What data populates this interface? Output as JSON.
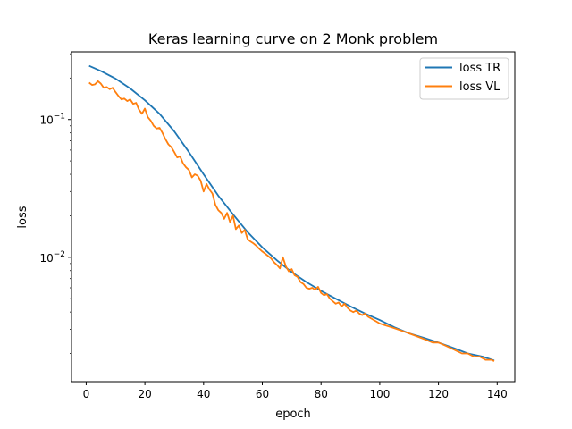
{
  "chart_data": {
    "type": "line",
    "title": "Keras learning curve on 2 Monk problem",
    "xlabel": "epoch",
    "ylabel": "loss",
    "xlim": [
      -5,
      146
    ],
    "ylim": [
      0.00125,
      0.31
    ],
    "yscale": "log",
    "grid": false,
    "legend": "top-right",
    "x_ticks": [
      {
        "value": 0,
        "label": "0"
      },
      {
        "value": 20,
        "label": "20"
      },
      {
        "value": 40,
        "label": "40"
      },
      {
        "value": 60,
        "label": "60"
      },
      {
        "value": 80,
        "label": "80"
      },
      {
        "value": 100,
        "label": "100"
      },
      {
        "value": 120,
        "label": "120"
      },
      {
        "value": 140,
        "label": "140"
      }
    ],
    "y_ticks": [
      {
        "value": 0.1,
        "base": "10",
        "exp": "−1"
      },
      {
        "value": 0.01,
        "base": "10",
        "exp": "−2"
      }
    ],
    "series": [
      {
        "name": "loss TR",
        "color": "#1f77b4",
        "points": [
          [
            1,
            0.245
          ],
          [
            5,
            0.225
          ],
          [
            10,
            0.198
          ],
          [
            15,
            0.168
          ],
          [
            20,
            0.138
          ],
          [
            25,
            0.11
          ],
          [
            30,
            0.082
          ],
          [
            35,
            0.058
          ],
          [
            40,
            0.04
          ],
          [
            45,
            0.028
          ],
          [
            50,
            0.0205
          ],
          [
            55,
            0.0152
          ],
          [
            60,
            0.0118
          ],
          [
            65,
            0.0095
          ],
          [
            70,
            0.0078
          ],
          [
            75,
            0.0066
          ],
          [
            80,
            0.0057
          ],
          [
            85,
            0.005
          ],
          [
            90,
            0.0044
          ],
          [
            95,
            0.0039
          ],
          [
            100,
            0.0035
          ],
          [
            105,
            0.0031
          ],
          [
            110,
            0.0028
          ],
          [
            115,
            0.0026
          ],
          [
            120,
            0.0024
          ],
          [
            125,
            0.0022
          ],
          [
            130,
            0.002
          ],
          [
            135,
            0.0019
          ],
          [
            139,
            0.00178
          ]
        ]
      },
      {
        "name": "loss VL",
        "color": "#ff7f0e",
        "points": [
          [
            1,
            0.185
          ],
          [
            2,
            0.178
          ],
          [
            3,
            0.18
          ],
          [
            4,
            0.19
          ],
          [
            5,
            0.182
          ],
          [
            6,
            0.17
          ],
          [
            7,
            0.172
          ],
          [
            8,
            0.166
          ],
          [
            9,
            0.17
          ],
          [
            10,
            0.158
          ],
          [
            11,
            0.148
          ],
          [
            12,
            0.14
          ],
          [
            13,
            0.142
          ],
          [
            14,
            0.136
          ],
          [
            15,
            0.14
          ],
          [
            16,
            0.13
          ],
          [
            17,
            0.132
          ],
          [
            18,
            0.118
          ],
          [
            19,
            0.11
          ],
          [
            20,
            0.12
          ],
          [
            21,
            0.104
          ],
          [
            22,
            0.098
          ],
          [
            23,
            0.09
          ],
          [
            24,
            0.086
          ],
          [
            25,
            0.087
          ],
          [
            26,
            0.08
          ],
          [
            27,
            0.072
          ],
          [
            28,
            0.066
          ],
          [
            29,
            0.063
          ],
          [
            30,
            0.058
          ],
          [
            31,
            0.053
          ],
          [
            32,
            0.054
          ],
          [
            33,
            0.048
          ],
          [
            34,
            0.045
          ],
          [
            35,
            0.043
          ],
          [
            36,
            0.038
          ],
          [
            37,
            0.04
          ],
          [
            38,
            0.039
          ],
          [
            39,
            0.036
          ],
          [
            40,
            0.03
          ],
          [
            41,
            0.034
          ],
          [
            42,
            0.031
          ],
          [
            43,
            0.029
          ],
          [
            44,
            0.024
          ],
          [
            45,
            0.022
          ],
          [
            46,
            0.021
          ],
          [
            47,
            0.019
          ],
          [
            48,
            0.021
          ],
          [
            49,
            0.018
          ],
          [
            50,
            0.02
          ],
          [
            51,
            0.016
          ],
          [
            52,
            0.017
          ],
          [
            53,
            0.015
          ],
          [
            54,
            0.0158
          ],
          [
            55,
            0.0135
          ],
          [
            56,
            0.013
          ],
          [
            57,
            0.0126
          ],
          [
            58,
            0.0121
          ],
          [
            59,
            0.0115
          ],
          [
            60,
            0.011
          ],
          [
            61,
            0.0106
          ],
          [
            62,
            0.0102
          ],
          [
            63,
            0.0098
          ],
          [
            64,
            0.0092
          ],
          [
            65,
            0.0088
          ],
          [
            66,
            0.0083
          ],
          [
            67,
            0.01
          ],
          [
            68,
            0.0086
          ],
          [
            69,
            0.0079
          ],
          [
            70,
            0.0082
          ],
          [
            71,
            0.0074
          ],
          [
            72,
            0.0072
          ],
          [
            73,
            0.0066
          ],
          [
            74,
            0.0064
          ],
          [
            75,
            0.006
          ],
          [
            76,
            0.0059
          ],
          [
            77,
            0.006
          ],
          [
            78,
            0.0058
          ],
          [
            79,
            0.0061
          ],
          [
            80,
            0.0055
          ],
          [
            81,
            0.0053
          ],
          [
            82,
            0.0054
          ],
          [
            83,
            0.005
          ],
          [
            84,
            0.0048
          ],
          [
            85,
            0.0046
          ],
          [
            86,
            0.0047
          ],
          [
            87,
            0.0044
          ],
          [
            88,
            0.0046
          ],
          [
            89,
            0.0043
          ],
          [
            90,
            0.0041
          ],
          [
            91,
            0.004
          ],
          [
            92,
            0.0041
          ],
          [
            93,
            0.0039
          ],
          [
            94,
            0.0038
          ],
          [
            95,
            0.0039
          ],
          [
            96,
            0.0037
          ],
          [
            97,
            0.0036
          ],
          [
            98,
            0.0035
          ],
          [
            99,
            0.0034
          ],
          [
            100,
            0.0033
          ],
          [
            102,
            0.0032
          ],
          [
            104,
            0.0031
          ],
          [
            106,
            0.003
          ],
          [
            108,
            0.0029
          ],
          [
            110,
            0.0028
          ],
          [
            112,
            0.0027
          ],
          [
            114,
            0.0026
          ],
          [
            116,
            0.0025
          ],
          [
            118,
            0.0024
          ],
          [
            120,
            0.0024
          ],
          [
            122,
            0.0023
          ],
          [
            124,
            0.0022
          ],
          [
            126,
            0.0021
          ],
          [
            128,
            0.002
          ],
          [
            130,
            0.002
          ],
          [
            132,
            0.0019
          ],
          [
            134,
            0.0019
          ],
          [
            136,
            0.0018
          ],
          [
            138,
            0.0018
          ],
          [
            139,
            0.00176
          ]
        ]
      }
    ]
  }
}
